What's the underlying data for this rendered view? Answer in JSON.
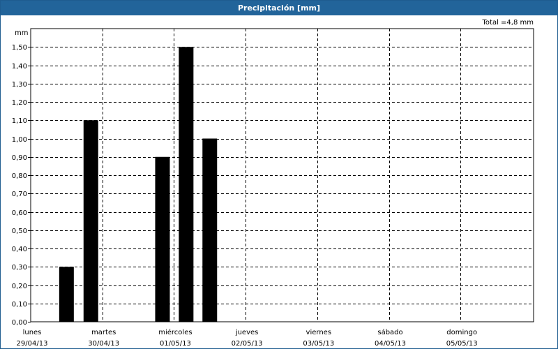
{
  "window": {
    "title": "Precipitación [mm]"
  },
  "total_label": "Total =4,8 mm",
  "colors": {
    "titlebar": "#22649a",
    "bar": "#000000",
    "grid": "#000000"
  },
  "chart_data": {
    "type": "bar",
    "title": "Precipitación [mm]",
    "ylabel": "mm",
    "xlabel": "",
    "ylim": [
      0,
      1.6
    ],
    "yticks": [
      "0,00",
      "0,10",
      "0,20",
      "0,30",
      "0,40",
      "0,50",
      "0,60",
      "0,70",
      "0,80",
      "0,90",
      "1,00",
      "1,10",
      "1,20",
      "1,30",
      "1,40",
      "1,50"
    ],
    "x_labels": [
      {
        "day": "lunes",
        "date": "29/04/13"
      },
      {
        "day": "martes",
        "date": "30/04/13"
      },
      {
        "day": "miércoles",
        "date": "01/05/13"
      },
      {
        "day": "jueves",
        "date": "02/05/13"
      },
      {
        "day": "viernes",
        "date": "03/05/13"
      },
      {
        "day": "sábado",
        "date": "04/05/13"
      },
      {
        "day": "domingo",
        "date": "05/05/13"
      }
    ],
    "bars": [
      {
        "day_position": 0.5,
        "value": 0.3
      },
      {
        "day_position": 0.84,
        "value": 1.1
      },
      {
        "day_position": 1.84,
        "value": 0.9
      },
      {
        "day_position": 2.17,
        "value": 1.5
      },
      {
        "day_position": 2.5,
        "value": 1.0
      }
    ],
    "grid": true,
    "legend": "none"
  }
}
